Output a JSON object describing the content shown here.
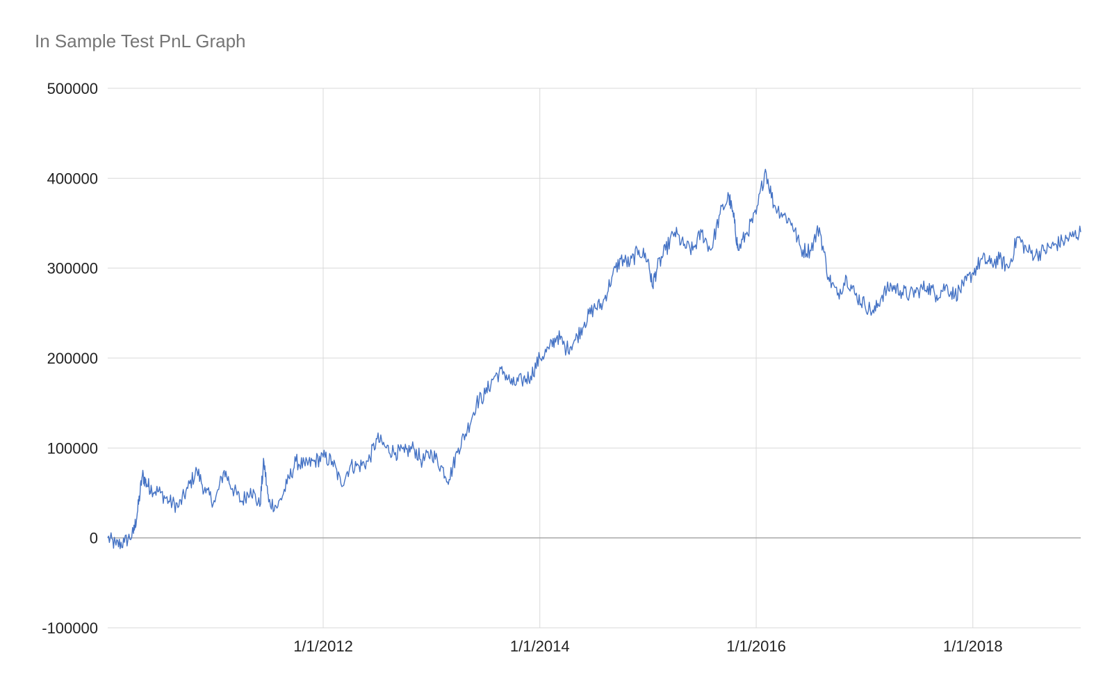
{
  "chart_data": {
    "type": "line",
    "title": "In Sample Test PnL Graph",
    "xlabel": "",
    "ylabel": "",
    "xlim": [
      "2010-01-04",
      "2018-12-31"
    ],
    "ylim": [
      -100000,
      500000
    ],
    "y_ticks": [
      500000,
      400000,
      300000,
      200000,
      100000,
      0,
      -100000
    ],
    "y_tick_labels": [
      "500000",
      "400000",
      "300000",
      "200000",
      "100000",
      "0",
      "-100000"
    ],
    "x_ticks": [
      "2012-01-01",
      "2014-01-01",
      "2016-01-01",
      "2018-01-01"
    ],
    "x_tick_labels": [
      "1/1/2012",
      "1/1/2014",
      "1/1/2016",
      "1/1/2018"
    ],
    "grid": true,
    "legend": "none",
    "line_color": "#4472c4",
    "grid_color": "#d9d9d9",
    "zero_line_color": "#a6a6a6",
    "series": [
      {
        "x": [
          "2010-01-04",
          "2010-02-01",
          "2010-03-01",
          "2010-04-01",
          "2010-04-15",
          "2010-05-01",
          "2010-05-15",
          "2010-06-01",
          "2010-07-01",
          "2010-08-01",
          "2010-09-01",
          "2010-10-01",
          "2010-11-01",
          "2010-12-01",
          "2011-01-01",
          "2011-02-01",
          "2011-03-01",
          "2011-04-01",
          "2011-05-01",
          "2011-06-01",
          "2011-06-15",
          "2011-07-01",
          "2011-08-01",
          "2011-09-01",
          "2011-10-01",
          "2011-11-01",
          "2011-12-01",
          "2012-01-01",
          "2012-02-01",
          "2012-03-01",
          "2012-04-01",
          "2012-05-01",
          "2012-06-01",
          "2012-07-01",
          "2012-08-01",
          "2012-09-01",
          "2012-10-01",
          "2012-11-01",
          "2012-12-01",
          "2013-01-01",
          "2013-02-01",
          "2013-03-01",
          "2013-04-01",
          "2013-05-01",
          "2013-06-01",
          "2013-07-01",
          "2013-08-01",
          "2013-09-01",
          "2013-10-01",
          "2013-11-01",
          "2013-12-01",
          "2014-01-01",
          "2014-02-01",
          "2014-03-01",
          "2014-04-01",
          "2014-05-01",
          "2014-06-01",
          "2014-07-01",
          "2014-08-01",
          "2014-09-01",
          "2014-10-01",
          "2014-11-01",
          "2014-12-01",
          "2015-01-01",
          "2015-01-15",
          "2015-02-01",
          "2015-03-01",
          "2015-04-01",
          "2015-05-01",
          "2015-06-01",
          "2015-07-01",
          "2015-08-01",
          "2015-09-01",
          "2015-10-01",
          "2015-10-20",
          "2015-11-01",
          "2015-12-01",
          "2016-01-01",
          "2016-02-01",
          "2016-03-01",
          "2016-04-01",
          "2016-05-01",
          "2016-06-01",
          "2016-07-01",
          "2016-08-01",
          "2016-09-01",
          "2016-10-01",
          "2016-11-01",
          "2016-12-01",
          "2017-01-01",
          "2017-02-01",
          "2017-03-01",
          "2017-04-01",
          "2017-05-01",
          "2017-06-01",
          "2017-07-01",
          "2017-08-01",
          "2017-09-01",
          "2017-10-01",
          "2017-11-01",
          "2017-12-01",
          "2018-01-01",
          "2018-02-01",
          "2018-03-01",
          "2018-04-01",
          "2018-05-01",
          "2018-06-01",
          "2018-07-01",
          "2018-08-01",
          "2018-09-01",
          "2018-10-01",
          "2018-11-01",
          "2018-12-01",
          "2018-12-31"
        ],
        "y": [
          0,
          -8000,
          -5000,
          5000,
          30000,
          70000,
          60000,
          55000,
          50000,
          40000,
          35000,
          55000,
          75000,
          50000,
          40000,
          75000,
          55000,
          40000,
          55000,
          35000,
          85000,
          40000,
          35000,
          60000,
          85000,
          80000,
          85000,
          90000,
          85000,
          60000,
          80000,
          80000,
          85000,
          110000,
          100000,
          95000,
          95000,
          100000,
          85000,
          95000,
          80000,
          65000,
          100000,
          120000,
          150000,
          160000,
          180000,
          185000,
          170000,
          175000,
          180000,
          200000,
          210000,
          225000,
          210000,
          220000,
          240000,
          255000,
          260000,
          290000,
          310000,
          305000,
          320000,
          310000,
          280000,
          300000,
          320000,
          340000,
          325000,
          320000,
          340000,
          320000,
          360000,
          380000,
          350000,
          320000,
          340000,
          360000,
          410000,
          370000,
          360000,
          350000,
          320000,
          320000,
          345000,
          290000,
          270000,
          290000,
          270000,
          260000,
          250000,
          270000,
          280000,
          275000,
          270000,
          275000,
          280000,
          270000,
          280000,
          270000,
          280000,
          295000,
          310000,
          305000,
          310000,
          300000,
          335000,
          320000,
          315000,
          320000,
          325000,
          330000,
          335000,
          340000
        ]
      }
    ]
  }
}
